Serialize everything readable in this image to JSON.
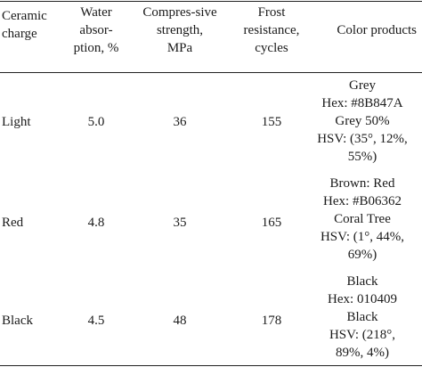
{
  "table": {
    "headers": {
      "charge": [
        "Ceramic",
        "charge"
      ],
      "water": [
        "Water",
        "absor-",
        "ption, %"
      ],
      "strength": [
        "Compres-sive",
        "strength,",
        "MPa"
      ],
      "frost": [
        "Frost",
        "resistance,",
        "cycles"
      ],
      "color": [
        "Color products"
      ]
    },
    "rows": [
      {
        "charge": "Light",
        "water": "5.0",
        "strength": "36",
        "frost": "155",
        "color": [
          "Grey",
          "Hex: #8B847A",
          "Grey 50%",
          "HSV: (35°, 12%,",
          "55%)"
        ]
      },
      {
        "charge": "Red",
        "water": "4.8",
        "strength": "35",
        "frost": "165",
        "color": [
          "Brown: Red",
          "Hex: #B06362",
          "Coral Tree",
          "HSV: (1°, 44%,",
          "69%)"
        ]
      },
      {
        "charge": "Black",
        "water": "4.5",
        "strength": "48",
        "frost": "178",
        "color": [
          "Black",
          "Hex: 010409",
          "Black",
          "HSV: (218°,",
          "89%, 4%)"
        ]
      }
    ]
  }
}
